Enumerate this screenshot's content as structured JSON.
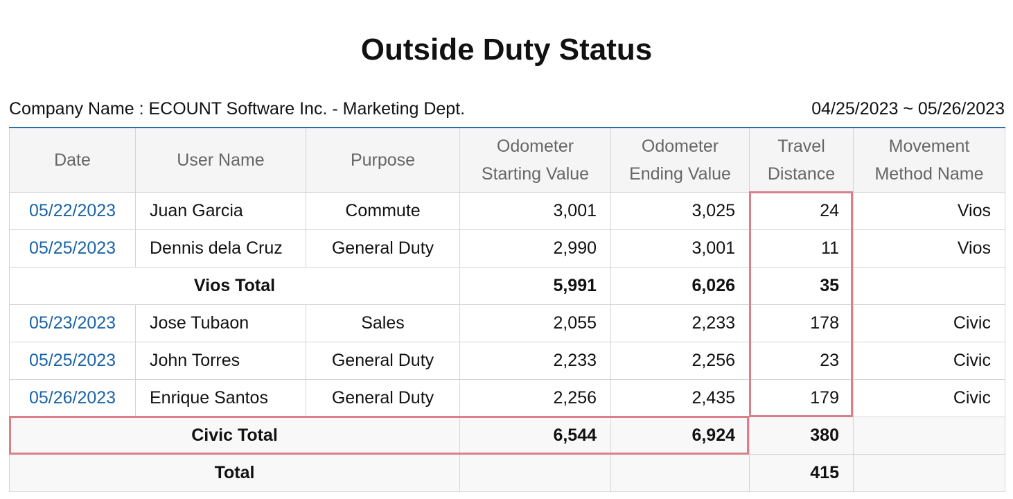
{
  "header": {
    "title": "Outside Duty Status",
    "company": "Company Name : ECOUNT Software Inc. - Marketing Dept.",
    "period": "04/25/2023 ~ 05/26/2023"
  },
  "table": {
    "columns": [
      [
        "Date"
      ],
      [
        "User Name"
      ],
      [
        "Purpose"
      ],
      [
        "Odometer",
        "Starting Value"
      ],
      [
        "Odometer",
        "Ending Value"
      ],
      [
        "Travel",
        "Distance"
      ],
      [
        "Movement",
        "Method Name"
      ]
    ],
    "rows": [
      {
        "date": "05/22/2023",
        "user": "Juan Garcia",
        "purpose": "Commute",
        "start": "3,001",
        "end": "3,025",
        "distance": "24",
        "method": "Vios"
      },
      {
        "date": "05/25/2023",
        "user": "Dennis dela Cruz",
        "purpose": "General Duty",
        "start": "2,990",
        "end": "3,001",
        "distance": "11",
        "method": "Vios"
      },
      {
        "label": "Vios Total",
        "start": "5,991",
        "end": "6,026",
        "distance": "35"
      },
      {
        "date": "05/23/2023",
        "user": "Jose Tubaon",
        "purpose": "Sales",
        "start": "2,055",
        "end": "2,233",
        "distance": "178",
        "method": "Civic"
      },
      {
        "date": "05/25/2023",
        "user": "John Torres",
        "purpose": "General Duty",
        "start": "2,233",
        "end": "2,256",
        "distance": "23",
        "method": "Civic"
      },
      {
        "date": "05/26/2023",
        "user": "Enrique Santos",
        "purpose": "General Duty",
        "start": "2,256",
        "end": "2,435",
        "distance": "179",
        "method": "Civic"
      },
      {
        "label": "Civic Total",
        "start": "6,544",
        "end": "6,924",
        "distance": "380"
      },
      {
        "label": "Total",
        "distance": "415"
      }
    ]
  }
}
